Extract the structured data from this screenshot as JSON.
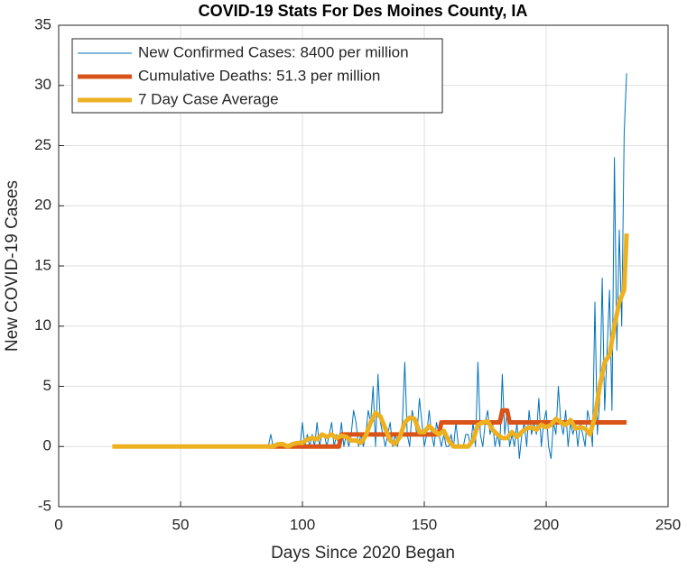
{
  "chart_data": {
    "type": "line",
    "title": "COVID-19 Stats For Des Moines County, IA",
    "x_label": "Days Since 2020 Began",
    "y_label": "New COVID-19 Cases",
    "xlim": [
      0,
      250
    ],
    "xticks": [
      0,
      50,
      100,
      150,
      200,
      250
    ],
    "ylim": [
      -5,
      35
    ],
    "yticks": [
      -5,
      0,
      5,
      10,
      15,
      20,
      25,
      30,
      35
    ],
    "grid": true,
    "legend": "upper left",
    "x": [
      86,
      87,
      88,
      89,
      90,
      91,
      92,
      93,
      94,
      95,
      96,
      97,
      98,
      99,
      100,
      101,
      102,
      103,
      104,
      105,
      106,
      107,
      108,
      109,
      110,
      111,
      112,
      113,
      114,
      115,
      116,
      117,
      118,
      119,
      120,
      121,
      122,
      123,
      124,
      125,
      126,
      127,
      128,
      129,
      130,
      131,
      132,
      133,
      134,
      135,
      136,
      137,
      138,
      139,
      140,
      141,
      142,
      143,
      144,
      145,
      146,
      147,
      148,
      149,
      150,
      151,
      152,
      153,
      154,
      155,
      156,
      157,
      158,
      159,
      160,
      161,
      162,
      163,
      164,
      165,
      166,
      167,
      168,
      169,
      170,
      171,
      172,
      173,
      174,
      175,
      176,
      177,
      178,
      179,
      180,
      181,
      182,
      183,
      184,
      185,
      186,
      187,
      188,
      189,
      190,
      191,
      192,
      193,
      194,
      195,
      196,
      197,
      198,
      199,
      200,
      201,
      202,
      203,
      204,
      205,
      206,
      207,
      208,
      209,
      210,
      211,
      212,
      213,
      214,
      215,
      216,
      217,
      218,
      219,
      220,
      221,
      222,
      223,
      224,
      225,
      226,
      227,
      228,
      229,
      230,
      231,
      232,
      233
    ],
    "series": [
      {
        "name": "New Confirmed Cases: 8400 per million",
        "color": "#0072BD",
        "width": 1,
        "values": [
          0,
          1,
          0,
          0,
          0,
          0,
          0,
          0,
          0,
          0,
          0,
          0,
          0,
          0,
          2,
          0,
          1,
          0,
          1,
          0,
          2,
          0,
          1,
          1,
          0,
          1,
          2,
          0,
          1,
          0,
          2,
          0,
          1,
          0,
          1,
          3,
          2,
          0,
          1,
          0,
          1,
          3,
          2,
          5,
          0,
          6,
          2,
          1,
          0,
          1,
          2,
          0,
          1,
          0,
          1,
          2,
          7,
          1,
          0,
          3,
          2,
          1,
          4,
          2,
          0,
          1,
          3,
          1,
          0,
          2,
          1,
          0,
          1,
          0,
          0,
          1,
          0,
          2,
          0,
          0,
          0,
          1,
          1,
          0,
          2,
          0,
          7,
          1,
          0,
          2,
          3,
          1,
          2,
          0,
          1,
          0,
          6,
          1,
          3,
          0,
          1,
          0,
          2,
          -1,
          1,
          2,
          0,
          3,
          1,
          2,
          1,
          4,
          0,
          2,
          3,
          0,
          -1,
          2,
          1,
          5,
          2,
          1,
          3,
          0,
          2,
          1,
          2,
          0,
          2,
          1,
          0,
          3,
          2,
          0,
          12,
          1,
          4,
          14,
          3,
          8,
          13,
          3,
          24,
          8,
          18,
          10,
          26,
          31
        ]
      },
      {
        "name": "Cumulative Deaths: 51.3 per million",
        "color": "#D95319",
        "width": 5,
        "values": [
          0,
          0,
          0,
          0,
          0,
          0,
          0,
          0,
          0,
          0,
          0,
          0,
          0,
          0,
          0,
          0,
          0,
          0,
          0,
          0,
          0,
          0,
          0,
          0,
          0,
          0,
          0,
          0,
          0,
          0,
          1,
          1,
          1,
          1,
          1,
          1,
          1,
          1,
          1,
          1,
          1,
          1,
          1,
          1,
          1,
          1,
          1,
          1,
          1,
          1,
          1,
          1,
          1,
          1,
          1,
          1,
          1,
          1,
          1,
          1,
          1,
          1,
          1,
          1,
          1,
          1,
          1,
          1,
          1,
          1,
          1,
          2,
          2,
          2,
          2,
          2,
          2,
          2,
          2,
          2,
          2,
          2,
          2,
          2,
          2,
          2,
          2,
          2,
          2,
          2,
          2,
          2,
          2,
          2,
          2,
          2,
          3,
          3,
          3,
          2,
          2,
          2,
          2,
          2,
          2,
          2,
          2,
          2,
          2,
          2,
          2,
          2,
          2,
          2,
          2,
          2,
          2,
          2,
          2,
          2,
          2,
          2,
          2,
          2,
          2,
          2,
          2,
          2,
          2,
          2,
          2,
          2,
          2,
          2,
          2,
          2,
          2,
          2,
          2,
          2,
          2,
          2,
          2,
          2,
          2,
          2,
          2,
          2
        ]
      },
      {
        "name": "7 Day Case Average",
        "color": "#EDB120",
        "width": 5,
        "x": [
          22,
          86,
          88,
          90,
          92,
          94,
          96,
          98,
          100,
          102,
          104,
          106,
          108,
          110,
          112,
          114,
          116,
          118,
          120,
          122,
          124,
          126,
          128,
          130,
          132,
          134,
          136,
          138,
          140,
          142,
          144,
          146,
          148,
          150,
          152,
          154,
          156,
          158,
          160,
          162,
          164,
          166,
          168,
          170,
          172,
          174,
          176,
          178,
          180,
          182,
          184,
          186,
          188,
          190,
          192,
          194,
          196,
          198,
          200,
          202,
          204,
          206,
          208,
          210,
          212,
          214,
          216,
          218,
          220,
          222,
          224,
          226,
          228,
          230,
          232,
          233
        ],
        "values": [
          0,
          0,
          0,
          0.2,
          0.2,
          0,
          0.2,
          0.3,
          0.3,
          0.6,
          0.7,
          0.6,
          1,
          0.8,
          1,
          0.7,
          0.9,
          0.8,
          0.5,
          0.5,
          0.3,
          0.9,
          2,
          2.8,
          2.5,
          1.5,
          0.5,
          0.2,
          0.8,
          2,
          2.4,
          2.3,
          1.2,
          1.2,
          1.7,
          1.3,
          1,
          1.3,
          0.5,
          0,
          0,
          0,
          0,
          0.5,
          1.8,
          2,
          2.1,
          1.4,
          1,
          0.7,
          0.7,
          1.2,
          0.8,
          1.2,
          1.5,
          1.6,
          1.4,
          1.8,
          1.6,
          1.8,
          2.3,
          2,
          1.8,
          2.2,
          1.5,
          1.6,
          1.5,
          1,
          2.5,
          5,
          7,
          7.6,
          10,
          12,
          13,
          17.7
        ]
      }
    ]
  }
}
